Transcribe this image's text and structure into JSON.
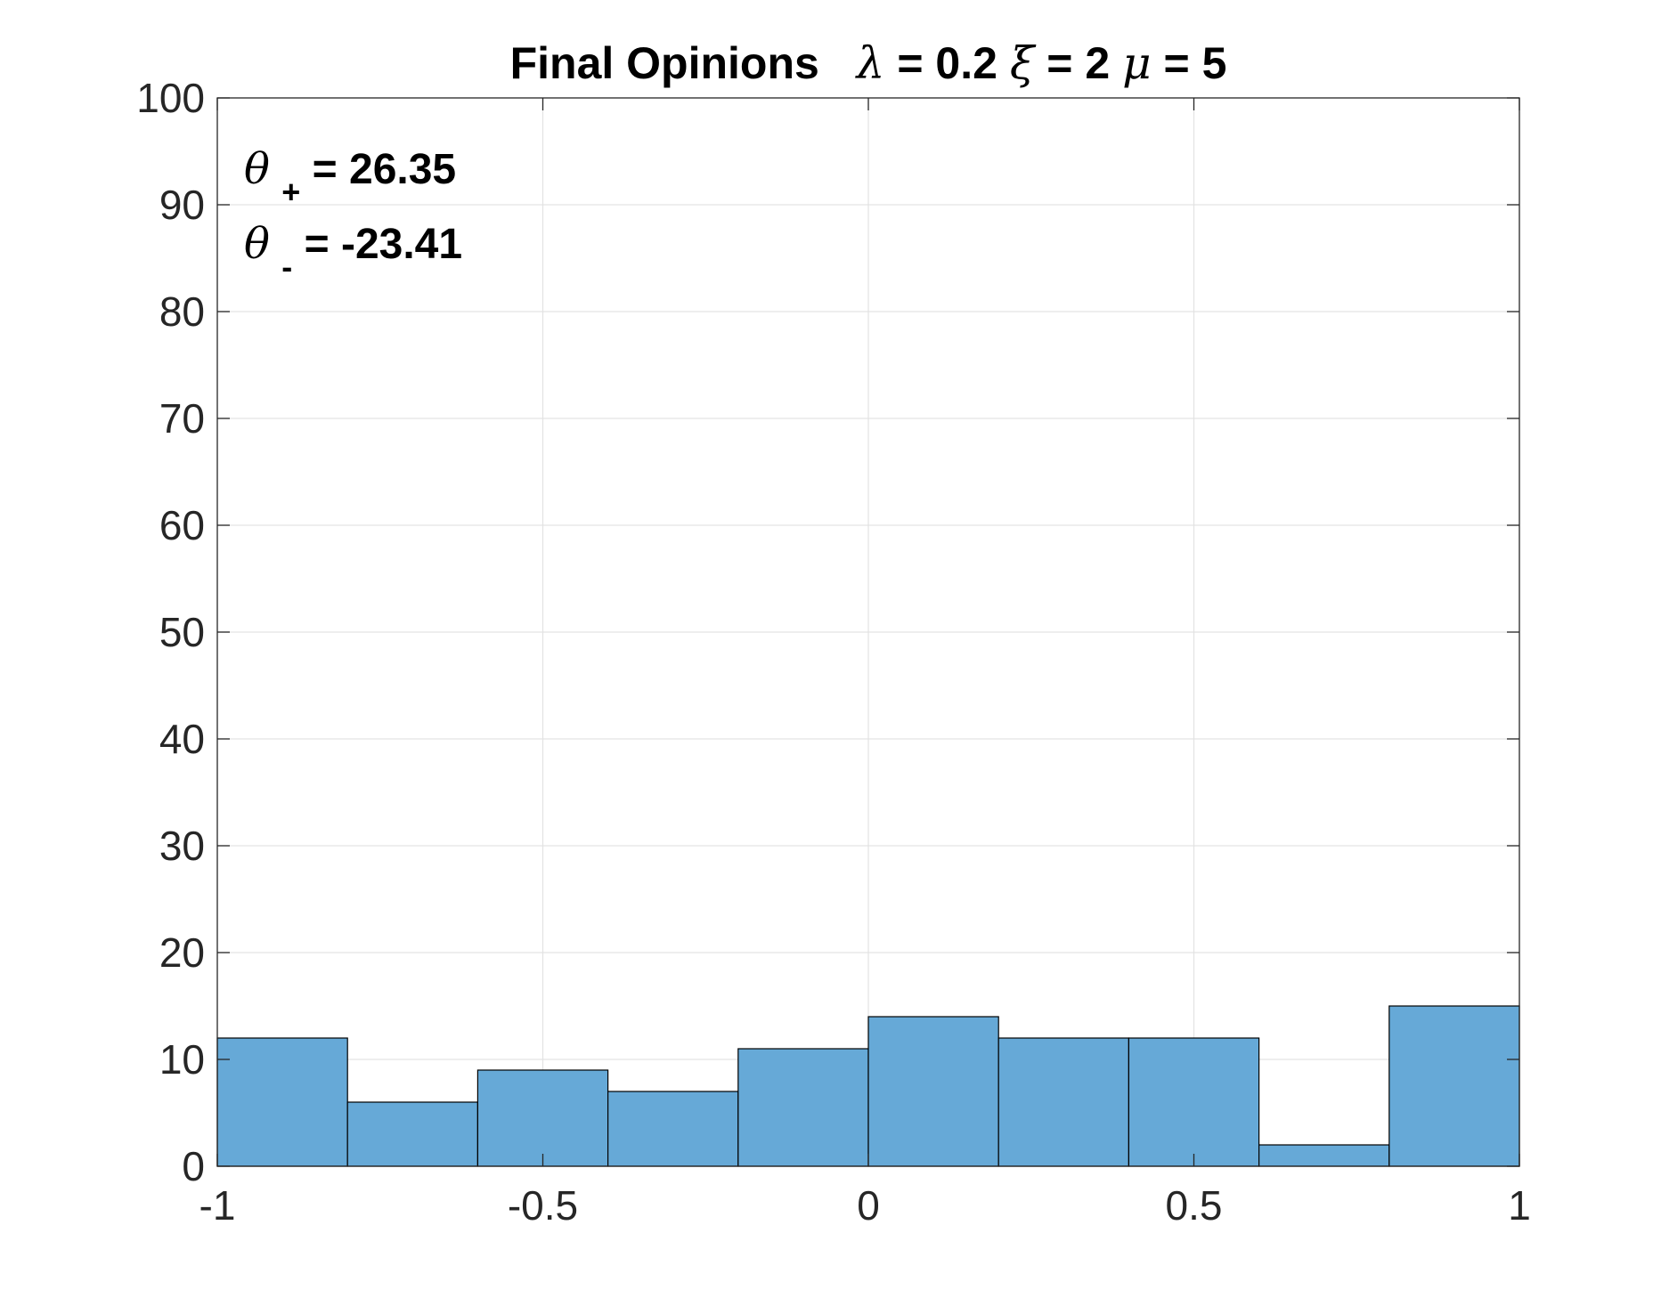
{
  "chart_data": {
    "type": "bar",
    "title": {
      "prefix": "Final Opinions",
      "lambda_symbol": "λ",
      "lambda_text": " = 0.2 ",
      "xi_symbol": "ξ",
      "xi_text": " = 2 ",
      "mu_symbol": "μ",
      "mu_text": " = 5"
    },
    "xlabel": "",
    "ylabel": "",
    "bin_edges": [
      -1,
      -0.8,
      -0.6,
      -0.4,
      -0.2,
      0,
      0.2,
      0.4,
      0.6,
      0.8,
      1
    ],
    "values": [
      12,
      6,
      9,
      7,
      11,
      14,
      12,
      12,
      2,
      15
    ],
    "xlim": [
      -1,
      1
    ],
    "ylim": [
      0,
      100
    ],
    "x_ticks": [
      -1,
      -0.5,
      0,
      0.5,
      1
    ],
    "x_tick_labels": [
      "-1",
      "-0.5",
      "0",
      "0.5",
      "1"
    ],
    "y_ticks": [
      0,
      10,
      20,
      30,
      40,
      50,
      60,
      70,
      80,
      90,
      100
    ],
    "y_tick_labels": [
      "0",
      "10",
      "20",
      "30",
      "40",
      "50",
      "60",
      "70",
      "80",
      "90",
      "100"
    ],
    "grid": true,
    "bar_color": "#66a9d7",
    "bar_edge_color": "#000000",
    "annotations": [
      {
        "symbol": "θ",
        "subscript": "+",
        "text": " = 26.35"
      },
      {
        "symbol": "θ",
        "subscript": "-",
        "text": " = -23.41"
      }
    ]
  }
}
